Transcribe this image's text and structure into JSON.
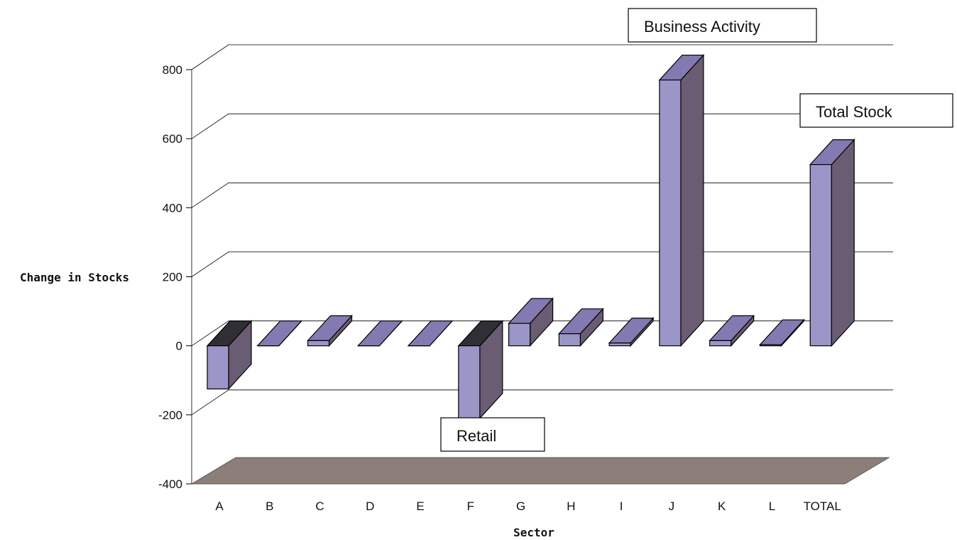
{
  "chart_data": {
    "type": "bar",
    "title": "",
    "xlabel": "Sector",
    "ylabel": "Change in Stocks",
    "categories": [
      "A",
      "B",
      "C",
      "D",
      "E",
      "F",
      "G",
      "H",
      "I",
      "J",
      "K",
      "L",
      "TOTAL"
    ],
    "values": [
      -125,
      0,
      15,
      0,
      0,
      -210,
      65,
      35,
      8,
      770,
      15,
      3,
      525
    ],
    "ylim": [
      -400,
      800
    ],
    "yticks": [
      -400,
      -200,
      0,
      200,
      400,
      600,
      800
    ],
    "ytick_labels": [
      "-400",
      "-200",
      "0",
      "200",
      "400",
      "600",
      "800"
    ],
    "grid": true,
    "legend": "none",
    "callouts": [
      {
        "text": "Business Activity",
        "category": "J"
      },
      {
        "text": "Total Stock",
        "category": "TOTAL"
      },
      {
        "text": "Retail",
        "category": "F"
      }
    ],
    "colors": {
      "bar_front": "#9b96c8",
      "bar_side": "#6a5c72",
      "bar_top": "#847ab2",
      "bar_top_dark": "#2f2f35",
      "floor": "#8c7f79",
      "grid": "#000000"
    }
  }
}
